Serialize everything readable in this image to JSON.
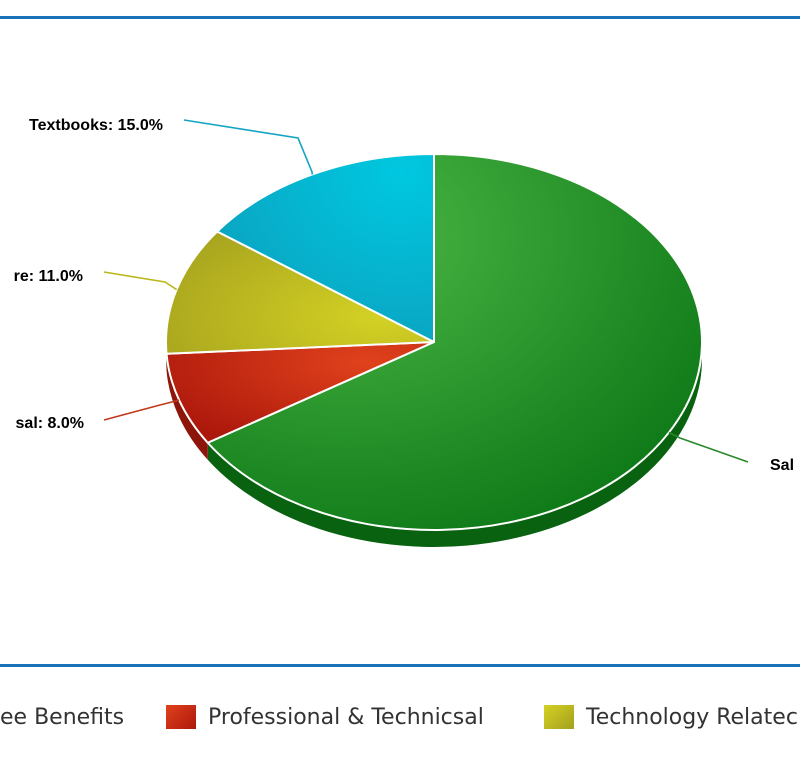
{
  "chart_data": {
    "type": "pie",
    "slices": [
      {
        "label": "Sal",
        "value": 66.0,
        "color": "#2a9a2a",
        "label_text": "Sal",
        "label_side": "right"
      },
      {
        "label": "Professional & Technicsal",
        "value": 8.0,
        "color": "#c62a12",
        "label_text": "sal: 8.0%",
        "label_side": "left"
      },
      {
        "label": "Technology Related",
        "value": 11.0,
        "color": "#b9b81c",
        "label_text": "re: 11.0%",
        "label_side": "left"
      },
      {
        "label": "Textbooks",
        "value": 15.0,
        "color": "#00a9cf",
        "label_text": "Textbooks: 15.0%",
        "label_side": "left"
      }
    ],
    "legend": {
      "placement": "bottom",
      "items": [
        {
          "label": "ee Benefits",
          "color": "#2a9a2a"
        },
        {
          "label": "Professional & Technicsal",
          "color": "#c62a12"
        },
        {
          "label": "Technology Relatec",
          "color": "#b9b81c"
        }
      ]
    }
  }
}
